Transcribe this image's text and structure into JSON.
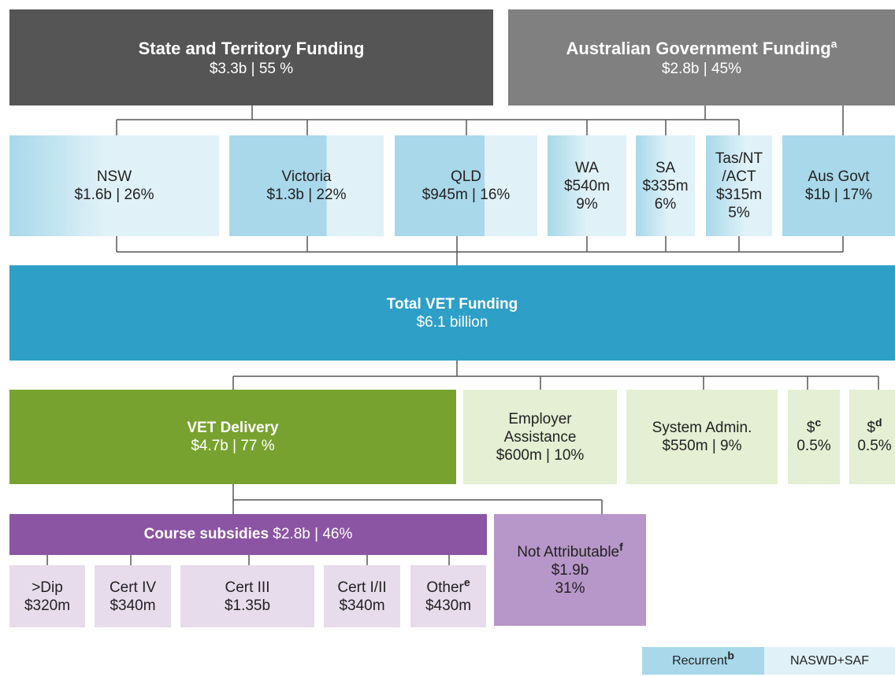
{
  "sources": [
    {
      "title": "State and Territory Funding",
      "amount": "$3.3b | 55 %"
    },
    {
      "title": "Australian Government Funding",
      "sup": "a",
      "amount": "$2.8b | 45%"
    }
  ],
  "jurisdictions": [
    {
      "lines": [
        "NSW",
        "$1.6b | 26%"
      ]
    },
    {
      "lines": [
        "Victoria",
        "$1.3b | 22%"
      ]
    },
    {
      "lines": [
        "QLD",
        "$945m | 16%"
      ]
    },
    {
      "lines": [
        "WA",
        "$540m",
        "9%"
      ]
    },
    {
      "lines": [
        "SA",
        "$335m",
        "6%"
      ]
    },
    {
      "lines": [
        "Tas/NT",
        "/ACT",
        "$315m",
        "5%"
      ]
    },
    {
      "lines": [
        "Aus Govt",
        "$1b | 17%"
      ]
    }
  ],
  "total": {
    "title": "Total VET Funding",
    "amount": "$6.1 billion"
  },
  "uses": [
    {
      "title": "VET Delivery",
      "amount": "$4.7b | 77 %"
    },
    {
      "lines": [
        "Employer",
        "Assistance",
        "$600m | 10%"
      ]
    },
    {
      "lines": [
        "System Admin.",
        "$550m | 9%"
      ]
    },
    {
      "label": "$",
      "sup": "c",
      "amount": "0.5%"
    },
    {
      "label": "$",
      "sup": "d",
      "amount": "0.5%"
    }
  ],
  "course_subsidies": {
    "title": "Course subsidies",
    "amount": "$2.8b | 46%"
  },
  "courses": [
    {
      "name": ">Dip",
      "amount": "$320m"
    },
    {
      "name": "Cert IV",
      "amount": "$340m"
    },
    {
      "name": "Cert III",
      "amount": "$1.35b"
    },
    {
      "name": "Cert I/II",
      "amount": "$340m"
    },
    {
      "name": "Other",
      "sup": "e",
      "amount": "$430m"
    }
  ],
  "not_attributable": {
    "title": "Not Attributable",
    "sup": "f",
    "amount": "$1.9b",
    "share": "31%"
  },
  "legend": [
    {
      "label": "Recurrent",
      "sup": "b"
    },
    {
      "label": "NASWD+SAF"
    }
  ]
}
